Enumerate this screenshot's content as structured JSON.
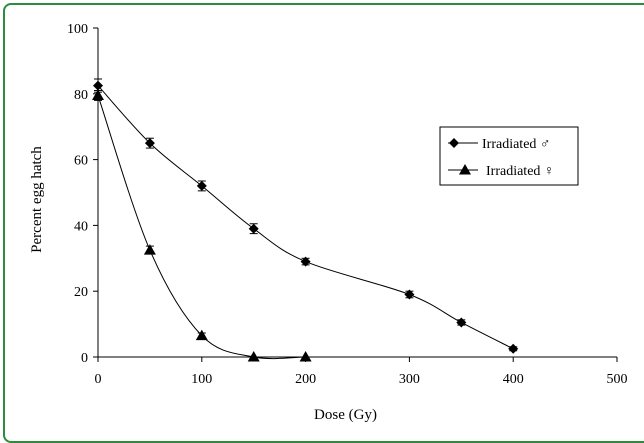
{
  "chart_data": {
    "type": "line",
    "title": "",
    "xlabel": "Dose (Gy)",
    "ylabel": "Percent egg hatch",
    "xlim": [
      0,
      500
    ],
    "ylim": [
      0,
      100
    ],
    "x_ticks": [
      0,
      100,
      200,
      300,
      400,
      500
    ],
    "y_ticks": [
      0,
      20,
      40,
      60,
      80,
      100
    ],
    "grid": false,
    "legend_position": "right",
    "series": [
      {
        "name": "Irradiated ♂",
        "marker": "diamond",
        "color": "#000000",
        "x": [
          0,
          50,
          100,
          150,
          200,
          300,
          350,
          400
        ],
        "y": [
          82.5,
          65,
          52,
          39,
          29,
          19,
          10.5,
          2.5
        ],
        "error": [
          2,
          1.5,
          1.5,
          1.5,
          1,
          1,
          0.8,
          0.6
        ]
      },
      {
        "name": "Irradiated ♀",
        "marker": "triangle",
        "color": "#000000",
        "x": [
          0,
          50,
          100,
          150,
          200
        ],
        "y": [
          79.5,
          32.5,
          6.5,
          0,
          0
        ],
        "error": [
          1.5,
          1.2,
          0.8,
          0,
          0
        ]
      }
    ]
  }
}
